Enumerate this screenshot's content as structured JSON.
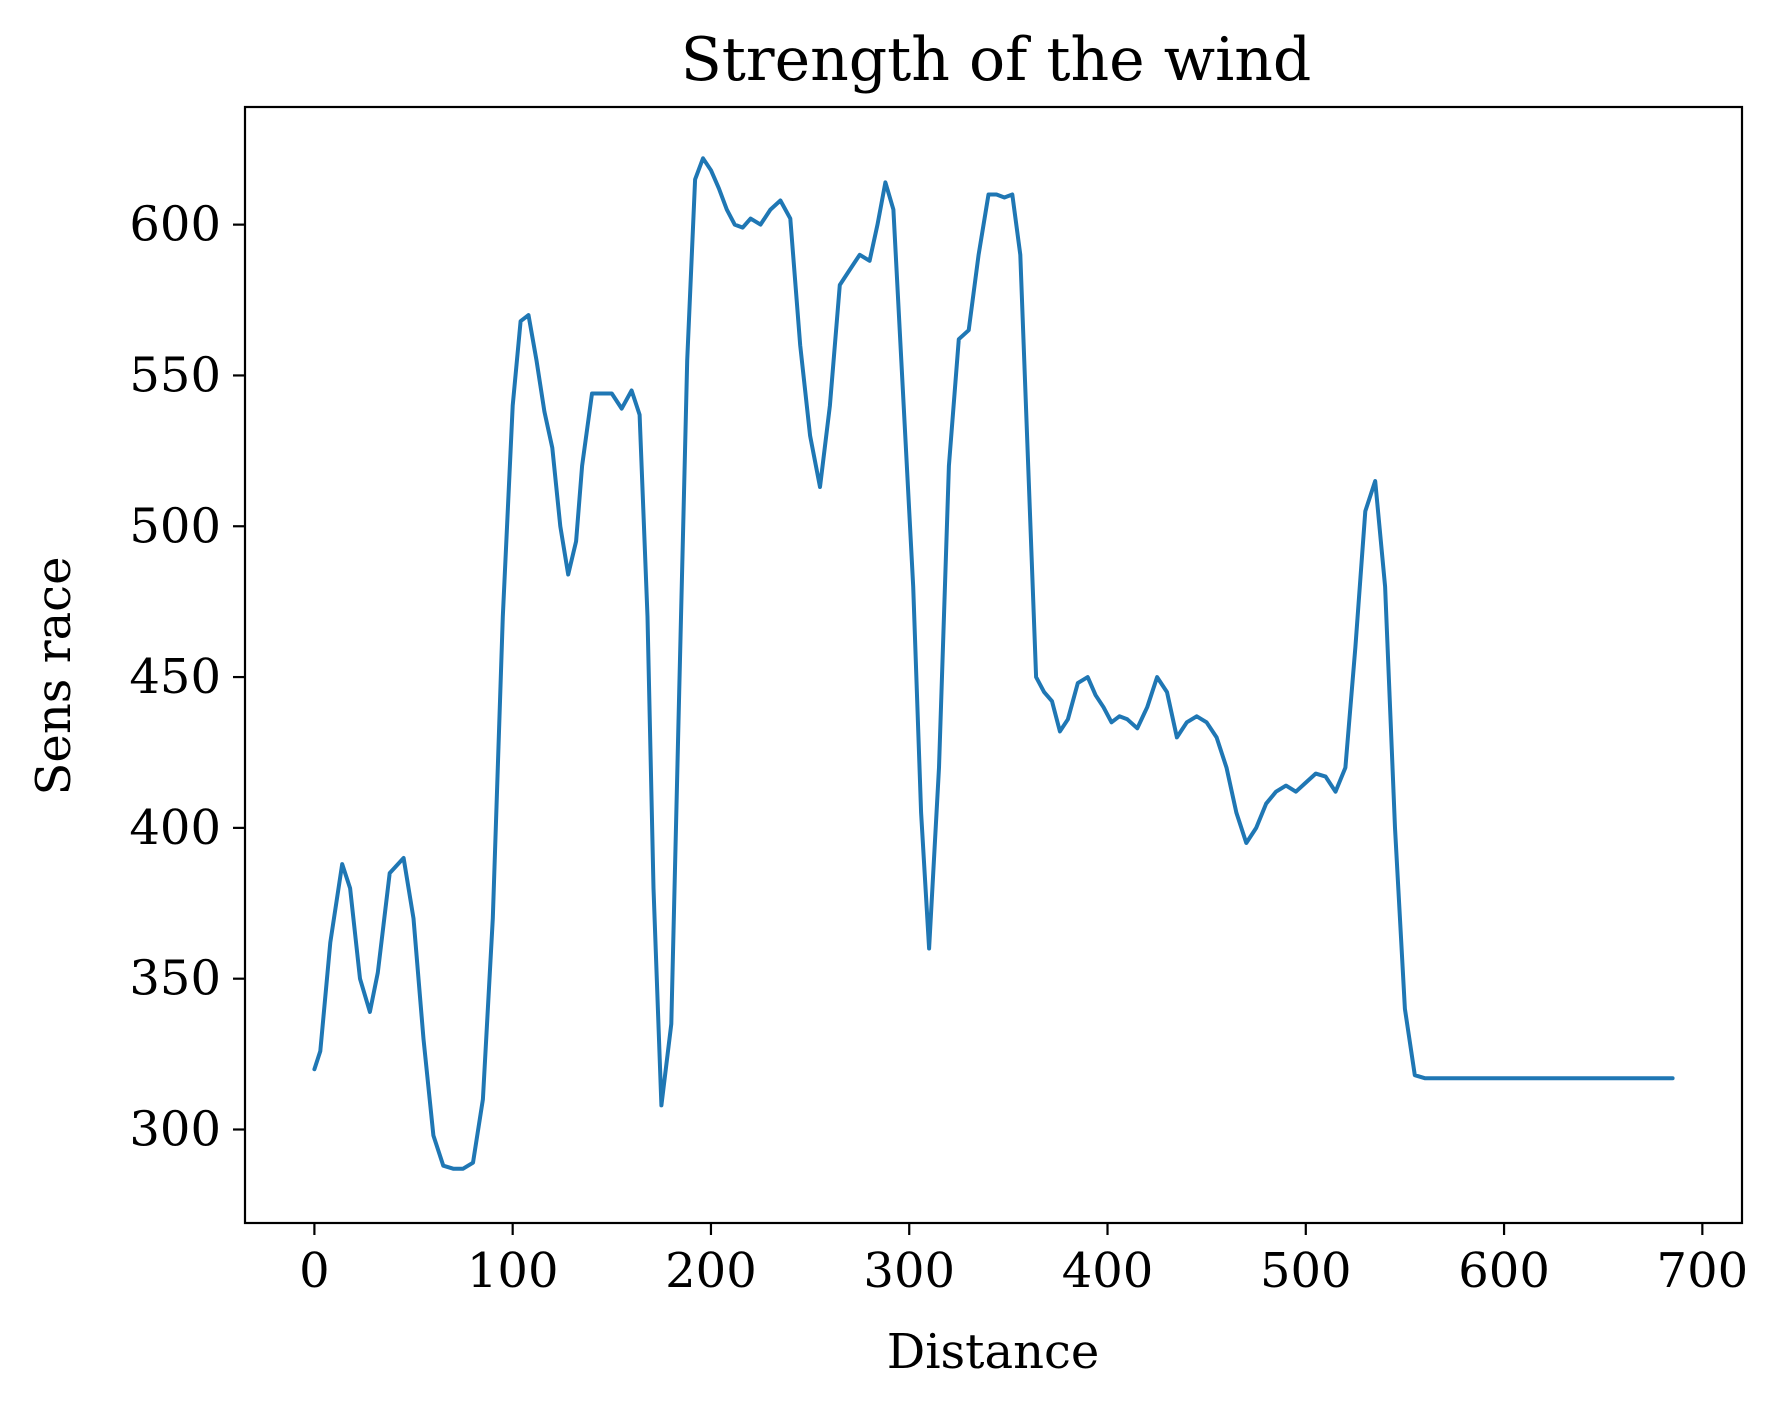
{
  "chart_data": {
    "type": "line",
    "title": "Strength of the wind",
    "xlabel": "Distance",
    "ylabel": "Sens race",
    "xlim": [
      -35,
      720
    ],
    "ylim": [
      269,
      639
    ],
    "xticks": [
      0,
      100,
      200,
      300,
      400,
      500,
      600,
      700
    ],
    "yticks": [
      300,
      350,
      400,
      450,
      500,
      550,
      600
    ],
    "grid": false,
    "series": [
      {
        "color": "#1f77b4",
        "x": [
          0,
          3,
          8,
          14,
          18,
          23,
          28,
          32,
          38,
          45,
          50,
          55,
          60,
          65,
          70,
          75,
          80,
          85,
          90,
          95,
          100,
          104,
          108,
          112,
          116,
          120,
          124,
          128,
          132,
          135,
          140,
          145,
          150,
          155,
          160,
          164,
          168,
          171,
          175,
          180,
          184,
          188,
          192,
          196,
          200,
          204,
          208,
          212,
          216,
          220,
          225,
          230,
          235,
          240,
          245,
          250,
          255,
          260,
          265,
          270,
          275,
          280,
          284,
          288,
          292,
          296,
          302,
          306,
          310,
          315,
          320,
          325,
          330,
          335,
          340,
          344,
          348,
          352,
          356,
          360,
          364,
          368,
          372,
          376,
          380,
          385,
          390,
          394,
          398,
          402,
          406,
          410,
          415,
          420,
          425,
          430,
          435,
          440,
          445,
          450,
          455,
          460,
          465,
          470,
          475,
          480,
          485,
          490,
          495,
          500,
          505,
          510,
          515,
          520,
          525,
          530,
          535,
          540,
          545,
          550,
          555,
          560,
          565,
          570,
          575,
          580,
          585,
          590,
          595,
          600,
          605,
          610,
          615,
          620,
          625,
          630,
          635,
          640,
          645,
          650,
          655,
          660,
          665,
          670,
          675,
          680,
          685
        ],
        "y": [
          320,
          326,
          362,
          388,
          380,
          350,
          339,
          352,
          385,
          390,
          370,
          330,
          298,
          288,
          287,
          287,
          289,
          310,
          370,
          470,
          540,
          568,
          570,
          555,
          538,
          526,
          500,
          484,
          495,
          520,
          544,
          544,
          544,
          539,
          545,
          537,
          470,
          380,
          308,
          335,
          445,
          555,
          615,
          622,
          618,
          612,
          605,
          600,
          599,
          602,
          600,
          605,
          608,
          602,
          560,
          530,
          513,
          540,
          580,
          585,
          590,
          588,
          600,
          614,
          605,
          555,
          480,
          405,
          360,
          420,
          520,
          562,
          565,
          590,
          610,
          610,
          609,
          610,
          590,
          520,
          450,
          445,
          442,
          432,
          436,
          448,
          450,
          444,
          440,
          435,
          437,
          436,
          433,
          440,
          450,
          445,
          430,
          435,
          437,
          435,
          430,
          420,
          405,
          395,
          400,
          408,
          412,
          414,
          412,
          415,
          418,
          417,
          412,
          420,
          460,
          505,
          515,
          480,
          400,
          340,
          318,
          317,
          317,
          317,
          317,
          317,
          317,
          317,
          317,
          317,
          317,
          317,
          317,
          317,
          317,
          317,
          317,
          317,
          317,
          317,
          317,
          317,
          317,
          317,
          317,
          317,
          317
        ]
      }
    ]
  }
}
